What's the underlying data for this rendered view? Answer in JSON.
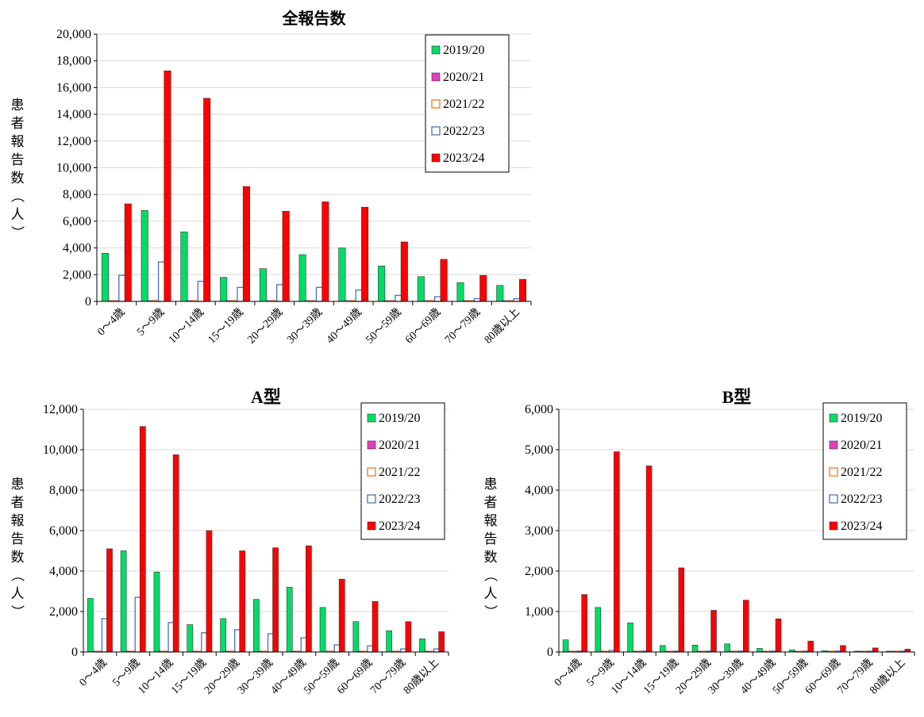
{
  "chart_data": [
    {
      "type": "bar",
      "title": "全報告数",
      "ylabel": "患者報告数（人）",
      "ylim": [
        0,
        20000
      ],
      "yticks": [
        "0",
        "2,000",
        "4,000",
        "6,000",
        "8,000",
        "10,000",
        "12,000",
        "14,000",
        "16,000",
        "18,000",
        "20,000"
      ],
      "categories": [
        "0～4歳",
        "5～9歳",
        "10～14歳",
        "15～19歳",
        "20～29歳",
        "30～39歳",
        "40～49歳",
        "50～59歳",
        "60～69歳",
        "70～79歳",
        "80歳以上"
      ],
      "legend_position": "top-right",
      "series": [
        {
          "name": "2019/20",
          "color": "#00dd66",
          "style": "filled",
          "values": [
            3600,
            6800,
            5200,
            1800,
            2450,
            3500,
            4000,
            2650,
            1850,
            1400,
            1200
          ]
        },
        {
          "name": "2020/21",
          "color": "#e040c0",
          "style": "filled",
          "values": [
            10,
            10,
            10,
            10,
            10,
            10,
            10,
            10,
            10,
            10,
            10
          ]
        },
        {
          "name": "2021/22",
          "color": "#f07820",
          "style": "outline",
          "values": [
            60,
            50,
            40,
            30,
            30,
            30,
            30,
            20,
            20,
            20,
            20
          ]
        },
        {
          "name": "2022/23",
          "color": "#4472c4",
          "style": "outline",
          "values": [
            1950,
            2950,
            1500,
            1050,
            1250,
            1050,
            850,
            450,
            350,
            200,
            200
          ]
        },
        {
          "name": "2023/24",
          "color": "#ff0000",
          "style": "filled",
          "values": [
            7300,
            17250,
            15200,
            8600,
            6750,
            7450,
            7050,
            4450,
            3150,
            1950,
            1650
          ]
        }
      ]
    },
    {
      "type": "bar",
      "title": "A型",
      "ylabel": "患者報告数（人）",
      "ylim": [
        0,
        12000
      ],
      "yticks": [
        "0",
        "2,000",
        "4,000",
        "6,000",
        "8,000",
        "10,000",
        "12,000"
      ],
      "categories": [
        "0～4歳",
        "5～9歳",
        "10～14歳",
        "15～19歳",
        "20～29歳",
        "30～39歳",
        "40～49歳",
        "50～59歳",
        "60～69歳",
        "70～79歳",
        "80歳以上"
      ],
      "legend_position": "top-right",
      "series": [
        {
          "name": "2019/20",
          "color": "#00dd66",
          "style": "filled",
          "values": [
            2650,
            5000,
            3950,
            1350,
            1650,
            2600,
            3200,
            2200,
            1500,
            1050,
            650
          ]
        },
        {
          "name": "2020/21",
          "color": "#e040c0",
          "style": "filled",
          "values": [
            5,
            5,
            5,
            5,
            5,
            5,
            5,
            5,
            5,
            5,
            5
          ]
        },
        {
          "name": "2021/22",
          "color": "#f07820",
          "style": "outline",
          "values": [
            30,
            20,
            20,
            20,
            20,
            20,
            20,
            20,
            10,
            10,
            10
          ]
        },
        {
          "name": "2022/23",
          "color": "#4472c4",
          "style": "outline",
          "values": [
            1650,
            2700,
            1450,
            950,
            1100,
            900,
            700,
            350,
            300,
            150,
            150
          ]
        },
        {
          "name": "2023/24",
          "color": "#ff0000",
          "style": "filled",
          "values": [
            5100,
            11150,
            9750,
            6000,
            5000,
            5150,
            5250,
            3600,
            2500,
            1500,
            1000
          ]
        }
      ]
    },
    {
      "type": "bar",
      "title": "B型",
      "ylabel": "患者報告数（人）",
      "ylim": [
        0,
        6000
      ],
      "yticks": [
        "0",
        "1,000",
        "2,000",
        "3,000",
        "4,000",
        "5,000",
        "6,000"
      ],
      "categories": [
        "0～4歳",
        "5～9歳",
        "10～14歳",
        "15～19歳",
        "20～29歳",
        "30～39歳",
        "40～49歳",
        "50～59歳",
        "60～69歳",
        "70～79歳",
        "80歳以上"
      ],
      "legend_position": "top-right",
      "series": [
        {
          "name": "2019/20",
          "color": "#00dd66",
          "style": "filled",
          "values": [
            300,
            1100,
            720,
            160,
            170,
            200,
            90,
            50,
            30,
            20,
            15
          ]
        },
        {
          "name": "2020/21",
          "color": "#e040c0",
          "style": "filled",
          "values": [
            5,
            5,
            5,
            5,
            5,
            5,
            5,
            5,
            5,
            5,
            5
          ]
        },
        {
          "name": "2021/22",
          "color": "#f07820",
          "style": "outline",
          "values": [
            10,
            10,
            10,
            10,
            10,
            10,
            10,
            10,
            10,
            10,
            10
          ]
        },
        {
          "name": "2022/23",
          "color": "#4472c4",
          "style": "outline",
          "values": [
            20,
            40,
            20,
            20,
            20,
            20,
            15,
            10,
            10,
            10,
            10
          ]
        },
        {
          "name": "2023/24",
          "color": "#ff0000",
          "style": "filled",
          "values": [
            1420,
            4950,
            4600,
            2080,
            1030,
            1280,
            820,
            270,
            160,
            100,
            70
          ]
        }
      ]
    }
  ]
}
